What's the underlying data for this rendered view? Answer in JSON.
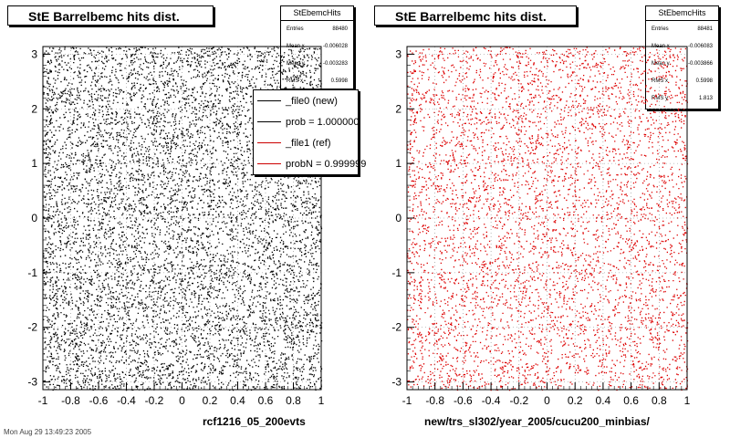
{
  "chart_data": [
    {
      "type": "scatter",
      "title": "StE Barrelbemc hits dist.",
      "xlabel": "rcf1216_05_200evts",
      "ylabel": "",
      "xlim": [
        -1,
        1
      ],
      "ylim": [
        -3.14,
        3.14
      ],
      "x_ticks": [
        "-1",
        "-0.8",
        "-0.6",
        "-0.4",
        "-0.2",
        "0",
        "0.2",
        "0.4",
        "0.6",
        "0.8",
        "1"
      ],
      "y_ticks": [
        "-3",
        "-2",
        "-1",
        "0",
        "1",
        "2",
        "3"
      ],
      "grid": true,
      "point_color": "#000000",
      "stats": {
        "name": "StEbemcHits",
        "rows": [
          {
            "label": "Entries",
            "value": "88480"
          },
          {
            "label": "Mean x",
            "value": "-0.006028"
          },
          {
            "label": "Mean y",
            "value": "-0.003283"
          },
          {
            "label": "RMS x",
            "value": "0.5998"
          }
        ]
      },
      "legend": {
        "placement": "top-right",
        "entries": [
          {
            "label": "_file0 (new)",
            "color": "#000000"
          },
          {
            "label": "prob = 1.000000",
            "color": "#000000"
          },
          {
            "label": "_file1 (ref)",
            "color": "#cc0000"
          },
          {
            "label": "probN = 0.999999",
            "color": "#cc0000"
          }
        ]
      }
    },
    {
      "type": "scatter",
      "title": "StE Barrelbemc hits dist.",
      "xlabel": "new/trs_sl302/year_2005/cucu200_minbias/",
      "ylabel": "",
      "xlim": [
        -1,
        1
      ],
      "ylim": [
        -3.14,
        3.14
      ],
      "x_ticks": [
        "-1",
        "-0.8",
        "-0.6",
        "-0.4",
        "-0.2",
        "0",
        "0.2",
        "0.4",
        "0.6",
        "0.8",
        "1"
      ],
      "y_ticks": [
        "-3",
        "-2",
        "-1",
        "0",
        "1",
        "2",
        "3"
      ],
      "grid": true,
      "point_color": "#dd0000",
      "stats": {
        "name": "StEbemcHits",
        "rows": [
          {
            "label": "Entries",
            "value": "88481"
          },
          {
            "label": "Mean x",
            "value": "-0.006083"
          },
          {
            "label": "Mean y",
            "value": "-0.003866"
          },
          {
            "label": "RMS x",
            "value": "0.5998"
          },
          {
            "label": "RMS y",
            "value": "1.813"
          }
        ]
      }
    }
  ],
  "footer": "Mon Aug 29 13:49:23 2005"
}
